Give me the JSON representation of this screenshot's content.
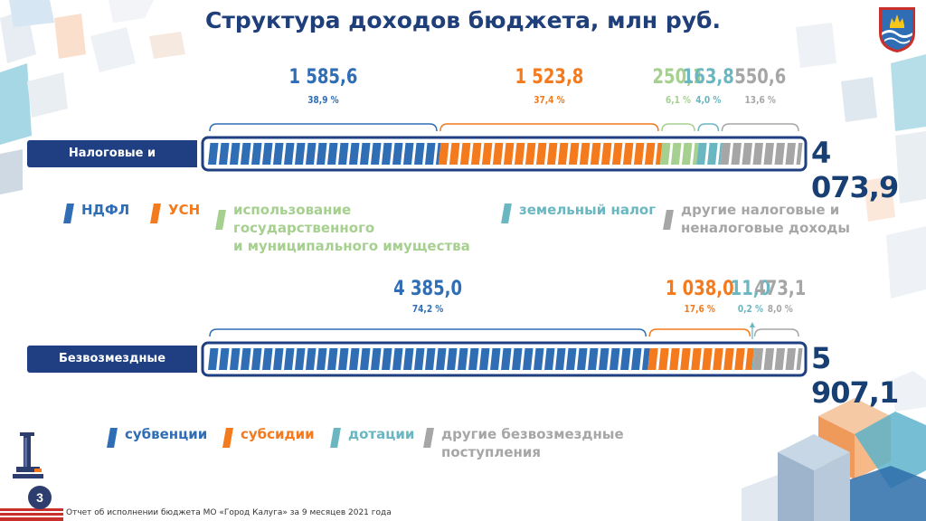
{
  "title": "Структура доходов бюджета, млн руб.",
  "footer": "Отчет об исполнении бюджета МО «Город Калуга» за 9 месяцев 2021 года",
  "page_number": "3",
  "colors": {
    "title": "#1e3f7a",
    "label_bg": "#1f3f82",
    "total": "#173f73",
    "dark_blue": "#2f6db5",
    "orange": "#f47a1e",
    "light_green": "#a6d08f",
    "teal": "#6ab7c2",
    "gray": "#a6a6a6"
  },
  "chart_data": [
    {
      "type": "bar",
      "stacked": true,
      "orientation": "horizontal",
      "label": "Налоговые и неналоговые",
      "total": "4 073,9",
      "segments": [
        {
          "name": "НДФЛ",
          "value": 1585.6,
          "value_label": "1 585,6",
          "pct_label": "38,9 %",
          "color": "#2f6db5"
        },
        {
          "name": "УСН",
          "value": 1523.8,
          "value_label": "1 523,8",
          "pct_label": "37,4 %",
          "color": "#f47a1e"
        },
        {
          "name": "использование государственного и муниципального имущества",
          "value": 250.1,
          "value_label": "250,1",
          "pct_label": "6,1 %",
          "color": "#a6d08f"
        },
        {
          "name": "земельный налог",
          "value": 163.8,
          "value_label": "163,8",
          "pct_label": "4,0 %",
          "color": "#6ab7c2"
        },
        {
          "name": "другие налоговые и неналоговые доходы",
          "value": 550.6,
          "value_label": "550,6",
          "pct_label": "13,6 %",
          "color": "#a6a6a6"
        }
      ],
      "legend": [
        {
          "lines": [
            "НДФЛ"
          ],
          "color": "#2f6db5"
        },
        {
          "lines": [
            "УСН"
          ],
          "color": "#f47a1e"
        },
        {
          "lines": [
            "использование государственного",
            "и муниципального имущества"
          ],
          "color": "#a6d08f"
        },
        {
          "lines": [
            "земельный налог"
          ],
          "color": "#6ab7c2"
        },
        {
          "lines": [
            "другие налоговые и",
            "неналоговые доходы"
          ],
          "color": "#a6a6a6"
        }
      ]
    },
    {
      "type": "bar",
      "stacked": true,
      "orientation": "horizontal",
      "label": "Безвозмездные поступления",
      "total": "5 907,1",
      "segments": [
        {
          "name": "субвенции",
          "value": 4385.0,
          "value_label": "4 385,0",
          "pct_label": "74,2 %",
          "color": "#2f6db5"
        },
        {
          "name": "субсидии",
          "value": 1038.0,
          "value_label": "1 038,0",
          "pct_label": "17,6 %",
          "color": "#f47a1e"
        },
        {
          "name": "дотации",
          "value": 11.0,
          "value_label": "11,0",
          "pct_label": "0,2 %",
          "color": "#6ab7c2"
        },
        {
          "name": "другие безвозмездные поступления",
          "value": 473.1,
          "value_label": "473,1",
          "pct_label": "8,0 %",
          "color": "#a6a6a6"
        }
      ],
      "legend": [
        {
          "lines": [
            "субвенции"
          ],
          "color": "#2f6db5"
        },
        {
          "lines": [
            "субсидии"
          ],
          "color": "#f47a1e"
        },
        {
          "lines": [
            "дотации"
          ],
          "color": "#6ab7c2"
        },
        {
          "lines": [
            "другие безвозмездные поступления"
          ],
          "color": "#a6a6a6"
        }
      ]
    }
  ]
}
